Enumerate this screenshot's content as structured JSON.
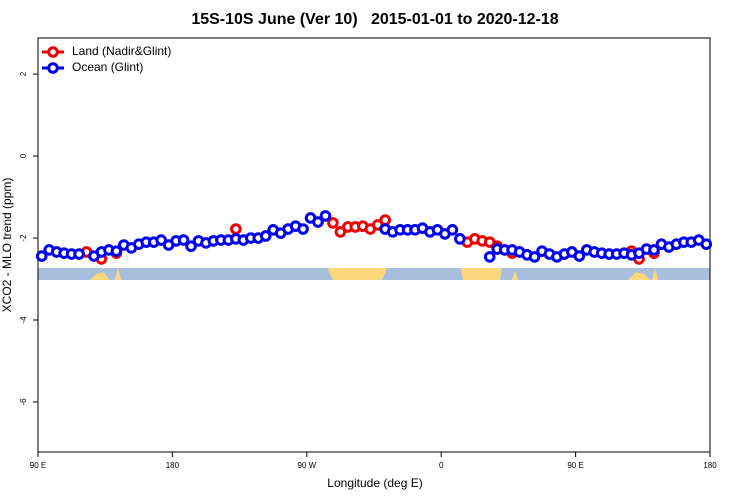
{
  "chart_data": {
    "type": "scatter",
    "title": "15S-10S June (Ver 10)   2015-01-01 to 2020-12-18",
    "x_label": "Longitude (deg E)",
    "y_label": "XCO2 - MLO trend (ppm)",
    "xlim": [
      90,
      540
    ],
    "ylim": [
      -7.22,
      2.88
    ],
    "xticks": [
      {
        "value": 90,
        "label": "90 E"
      },
      180,
      {
        "value": 270,
        "label": "90 W"
      },
      {
        "value": 360,
        "label": "0"
      },
      {
        "value": 450,
        "label": "90 E"
      },
      {
        "value": 540,
        "label": "180"
      }
    ],
    "yticks": [
      2,
      0,
      -2,
      -4,
      -6
    ],
    "legend": "top-left",
    "x": [
      92.5,
      97.5,
      102.5,
      107.5,
      112.5,
      117.5,
      122.5,
      127.5,
      132.5,
      137.5,
      142.5,
      147.5,
      152.5,
      157.5,
      162.5,
      167.5,
      172.5,
      177.5,
      182.5,
      187.5,
      192.5,
      197.5,
      202.5,
      207.5,
      212.5,
      217.5,
      222.5,
      227.5,
      232.5,
      237.5,
      242.5,
      247.5,
      252.5,
      257.5,
      262.5,
      267.5,
      272.5,
      277.5,
      282.5,
      287.5,
      292.5,
      297.5,
      302.5,
      307.5,
      312.5,
      317.5,
      322.5,
      327.5,
      332.5,
      337.5,
      342.5,
      347.5,
      352.5,
      357.5,
      362.5,
      367.5,
      372.5,
      377.5,
      382.5,
      387.5,
      392.5,
      397.5,
      402.5,
      407.5,
      412.5,
      417.5,
      422.5,
      427.5,
      432.5,
      437.5,
      442.5,
      447.5,
      452.5,
      457.5,
      462.5,
      467.5,
      472.5,
      477.5,
      482.5,
      487.5,
      492.5,
      497.5,
      502.5,
      507.5,
      512.5,
      517.5,
      522.5,
      527.5,
      532.5,
      537.5
    ],
    "series": [
      {
        "name": "Land (Nadir&Glint)",
        "color": "#ee0000",
        "values": [
          null,
          null,
          null,
          null,
          null,
          null,
          -2.34,
          null,
          -2.51,
          null,
          -2.37,
          null,
          null,
          null,
          null,
          null,
          null,
          null,
          null,
          null,
          null,
          null,
          null,
          null,
          null,
          null,
          -1.78,
          null,
          null,
          null,
          null,
          null,
          null,
          null,
          null,
          null,
          null,
          null,
          null,
          -1.63,
          -1.85,
          -1.73,
          -1.73,
          -1.71,
          -1.78,
          -1.68,
          -1.56,
          null,
          null,
          null,
          null,
          null,
          null,
          null,
          null,
          null,
          null,
          -2.1,
          -2.02,
          -2.07,
          -2.1,
          -2.2,
          null,
          -2.37,
          null,
          null,
          null,
          null,
          null,
          null,
          null,
          null,
          null,
          null,
          null,
          null,
          null,
          null,
          null,
          -2.32,
          -2.51,
          null,
          -2.37,
          null,
          null,
          null,
          null,
          null,
          null,
          null
        ]
      },
      {
        "name": "Ocean (Glint)",
        "color": "#0000ee",
        "values": [
          -2.44,
          -2.29,
          -2.34,
          -2.37,
          -2.39,
          -2.39,
          null,
          -2.44,
          -2.34,
          -2.29,
          -2.32,
          -2.17,
          -2.24,
          -2.15,
          -2.1,
          -2.1,
          -2.05,
          -2.17,
          -2.07,
          -2.05,
          -2.2,
          -2.07,
          -2.12,
          -2.07,
          -2.05,
          -2.05,
          -2.02,
          -2.05,
          -2.0,
          -2.0,
          -1.95,
          -1.8,
          -1.88,
          -1.78,
          -1.71,
          -1.78,
          -1.51,
          -1.61,
          -1.46,
          null,
          null,
          null,
          null,
          null,
          null,
          null,
          -1.78,
          -1.85,
          -1.8,
          -1.8,
          -1.8,
          -1.76,
          -1.85,
          -1.8,
          -1.9,
          -1.8,
          -2.02,
          null,
          null,
          null,
          -2.46,
          -2.27,
          -2.29,
          -2.29,
          -2.34,
          -2.41,
          -2.46,
          -2.32,
          -2.39,
          -2.46,
          -2.39,
          -2.34,
          -2.44,
          -2.29,
          -2.34,
          -2.37,
          -2.39,
          -2.39,
          -2.37,
          -2.41,
          -2.37,
          -2.27,
          -2.29,
          -2.15,
          -2.22,
          -2.15,
          -2.1,
          -2.1,
          -2.05,
          -2.15
        ]
      }
    ]
  }
}
